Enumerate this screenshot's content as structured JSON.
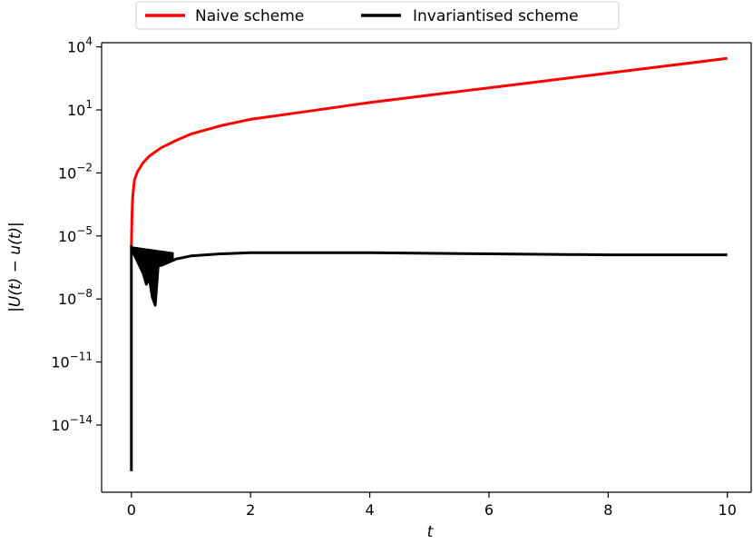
{
  "chart_data": {
    "type": "line",
    "xlabel": "t",
    "ylabel": "|U(t) − u(t)|",
    "yscale": "log",
    "xlim": [
      -0.5,
      10.4
    ],
    "ylim_exponent": [
      -17.2,
      4.2
    ],
    "xticks": [
      0,
      2,
      4,
      6,
      8,
      10
    ],
    "xtick_labels": [
      "0",
      "2",
      "4",
      "6",
      "8",
      "10"
    ],
    "yticks": [
      {
        "base": "10",
        "exp": "4",
        "value_exp": 4
      },
      {
        "base": "10",
        "exp": "1",
        "value_exp": 1
      },
      {
        "base": "10",
        "exp": "−2",
        "value_exp": -2
      },
      {
        "base": "10",
        "exp": "−5",
        "value_exp": -5
      },
      {
        "base": "10",
        "exp": "−8",
        "value_exp": -8
      },
      {
        "base": "10",
        "exp": "−11",
        "value_exp": -11
      },
      {
        "base": "10",
        "exp": "−14",
        "value_exp": -14
      }
    ],
    "grid": false,
    "legend": {
      "placement": "top-center-outside",
      "columns": 2
    },
    "series": [
      {
        "name": "Naive scheme",
        "color": "#ff0000",
        "style": "solid",
        "x": [
          0.0,
          0.01,
          0.02,
          0.05,
          0.1,
          0.2,
          0.3,
          0.5,
          0.75,
          1.0,
          1.5,
          2.0,
          3.0,
          4.0,
          5.0,
          6.0,
          7.0,
          8.0,
          9.0,
          10.0
        ],
        "log10_y": [
          -5.5,
          -4.0,
          -3.2,
          -2.35,
          -1.95,
          -1.5,
          -1.2,
          -0.8,
          -0.45,
          -0.15,
          0.25,
          0.55,
          0.95,
          1.35,
          1.7,
          2.05,
          2.4,
          2.75,
          3.1,
          3.45
        ]
      },
      {
        "name": "Invariantised scheme",
        "color": "#000000",
        "style": "solid",
        "x": [
          0.0,
          0.0,
          0.01,
          0.05,
          0.1,
          0.15,
          0.2,
          0.25,
          0.3,
          0.35,
          0.4,
          0.45,
          0.5,
          0.75,
          1.0,
          1.5,
          2.0,
          3.0,
          4.0,
          6.0,
          8.0,
          10.0
        ],
        "log10_y": [
          -16.2,
          -5.5,
          -5.6,
          -5.9,
          -6.2,
          -6.5,
          -6.8,
          -7.3,
          -7.0,
          -7.9,
          -8.3,
          -6.4,
          -6.4,
          -6.1,
          -5.95,
          -5.85,
          -5.8,
          -5.8,
          -5.8,
          -5.85,
          -5.9,
          -5.9
        ]
      }
    ]
  }
}
